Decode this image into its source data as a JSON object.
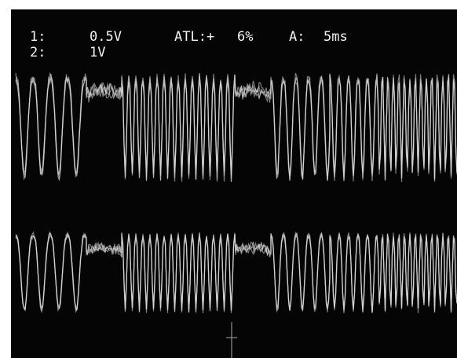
{
  "readout": {
    "channels": [
      {
        "label": "1:",
        "scale": "0.5V"
      },
      {
        "label": "2:",
        "scale": "1V"
      }
    ],
    "trigger": {
      "label": "ATL:+",
      "level": "6%"
    },
    "timebase": {
      "label": "A:",
      "value": "5ms"
    }
  }
}
